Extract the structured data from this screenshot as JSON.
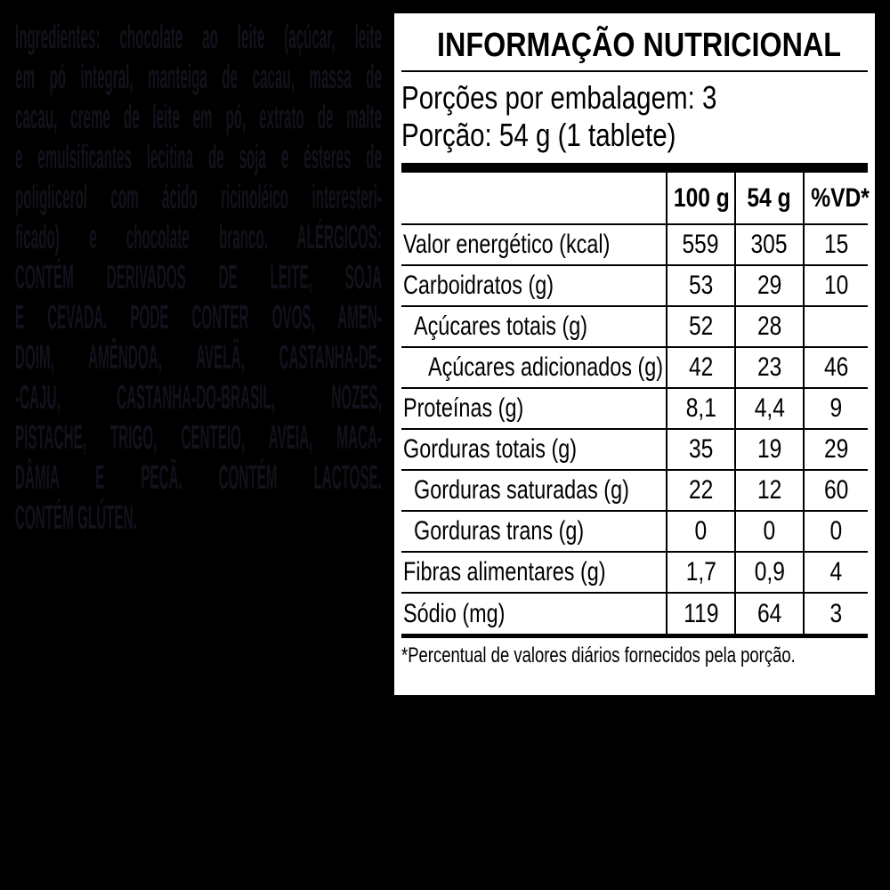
{
  "page": {
    "background": "#000000",
    "ingredients_text_color": "#12121c"
  },
  "ingredients": {
    "lines": [
      "Ingredientes: chocolate ao leite (açúcar, leite",
      "em pó integral, manteiga de cacau, massa de",
      "cacau, creme de leite em pó, extrato de malte",
      "e emulsificantes lecitina de soja e ésteres de",
      "poliglicerol com ácido ricinoléico interesteri-",
      "ficado) e chocolate branco. ALÉRGICOS:",
      "CONTÉM DERIVADOS DE LEITE, SOJA",
      "E CEVADA. PODE CONTER OVOS, AMEN-",
      "DOIM, AMÊNDOA, AVELÃ, CASTANHA-DE-",
      "-CAJU, CASTANHA-DO-BRASIL, NOZES,",
      "PISTACHE, TRIGO, CENTEIO, AVEIA, MACA-",
      "DÂMIA E PECÃ. CONTÉM LACTOSE.",
      "CONTÉM GLÚTEN."
    ]
  },
  "panel": {
    "title": "INFORMAÇÃO NUTRICIONAL",
    "servings_per_package": "Porções por embalagem: 3",
    "portion": "Porção: 54 g (1 tablete)",
    "footnote": "*Percentual de valores diários fornecidos pela porção."
  },
  "table": {
    "columns": {
      "per100": "100 g",
      "per54": "54 g",
      "vd": "%VD*"
    },
    "rows": [
      {
        "label": "Valor energético (kcal)",
        "v100": "559",
        "v54": "305",
        "vd": "15"
      },
      {
        "label": "Carboidratos (g)",
        "v100": "53",
        "v54": "29",
        "vd": "10"
      },
      {
        "label": "Açúcares totais (g)",
        "v100": "52",
        "v54": "28",
        "vd": ""
      },
      {
        "label": "Açúcares adicionados (g)",
        "v100": "42",
        "v54": "23",
        "vd": "46"
      },
      {
        "label": "Proteínas (g)",
        "v100": "8,1",
        "v54": "4,4",
        "vd": "9"
      },
      {
        "label": "Gorduras totais (g)",
        "v100": "35",
        "v54": "19",
        "vd": "29"
      },
      {
        "label": "Gorduras saturadas (g)",
        "v100": "22",
        "v54": "12",
        "vd": "60"
      },
      {
        "label": "Gorduras trans (g)",
        "v100": "0",
        "v54": "0",
        "vd": "0"
      },
      {
        "label": "Fibras alimentares (g)",
        "v100": "1,7",
        "v54": "0,9",
        "vd": "4"
      },
      {
        "label": "Sódio (mg)",
        "v100": "119",
        "v54": "64",
        "vd": "3"
      }
    ]
  }
}
